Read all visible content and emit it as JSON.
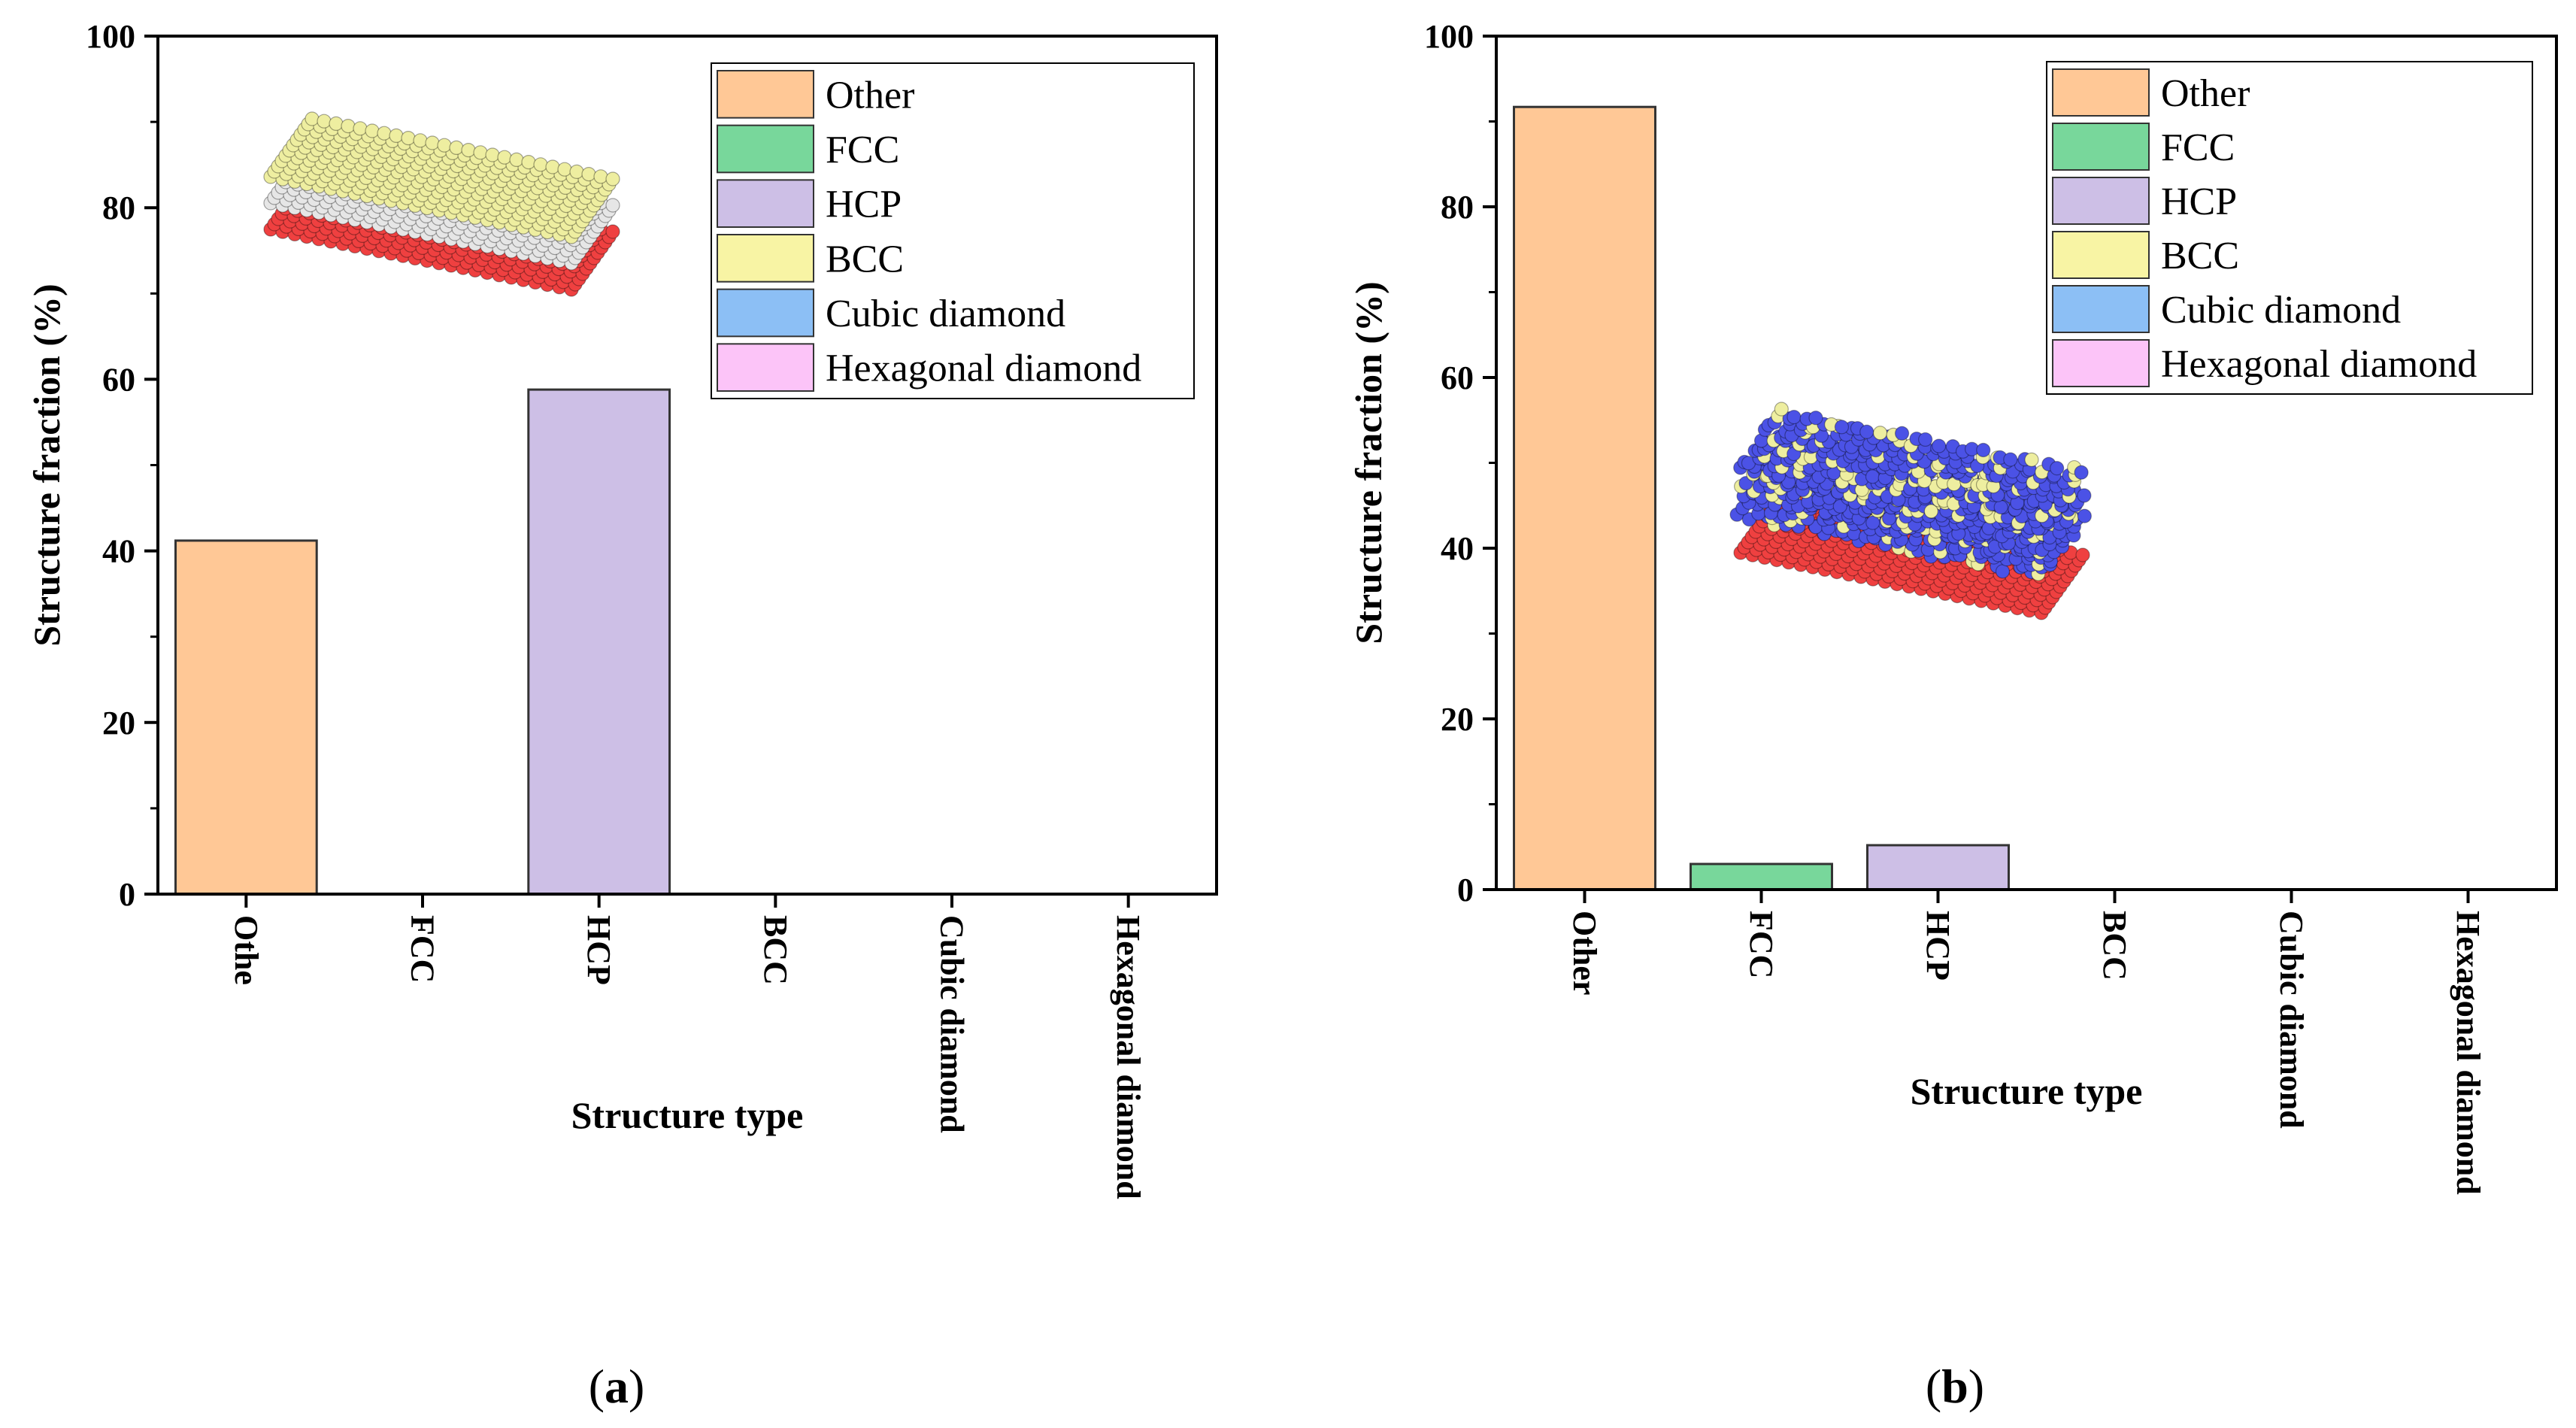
{
  "colors": {
    "Other": "#ffc896",
    "FCC": "#78d79b",
    "HCP": "#cdbfe6",
    "BCC": "#f8f4a4",
    "Cubic diamond": "#8cbff5",
    "Hexagonal diamond": "#fcc4f8",
    "atom_red": "#ef4040",
    "atom_white": "#e6e6e6",
    "atom_yellow": "#eeeea0",
    "atom_blue": "#4b52e6",
    "bar_edge": "#333333"
  },
  "chart_data": [
    {
      "type": "bar",
      "panel": "a",
      "panel_label": {
        "open": "(",
        "letter": "a",
        "close": ")"
      },
      "categories": [
        "Othe",
        "FCC",
        "HCP",
        "BCC",
        "Cubic diamond",
        "Hexagonal diamond"
      ],
      "bar_colors": [
        "Other",
        "FCC",
        "HCP",
        "BCC",
        "Cubic diamond",
        "Hexagonal diamond"
      ],
      "values": [
        41.2,
        0,
        58.8,
        0,
        0,
        0
      ],
      "xlabel": "Structure type",
      "ylabel": "Structure fraction (%)",
      "ylim": [
        0,
        100
      ],
      "yticks": [
        0,
        20,
        40,
        60,
        80,
        100
      ],
      "legend": [
        "Other",
        "FCC",
        "HCP",
        "BCC",
        "Cubic diamond",
        "Hexagonal diamond"
      ],
      "legend_position": "top-right",
      "grid": false,
      "inset": "atomic slab: red bottom layer, white middle layer, yellow-green top layer"
    },
    {
      "type": "bar",
      "panel": "b",
      "panel_label": {
        "open": "(",
        "letter": "b",
        "close": ")"
      },
      "categories": [
        "Other",
        "FCC",
        "HCP",
        "BCC",
        "Cubic diamond",
        "Hexagonal diamond"
      ],
      "bar_colors": [
        "Other",
        "FCC",
        "HCP",
        "BCC",
        "Cubic diamond",
        "Hexagonal diamond"
      ],
      "values": [
        91.7,
        3.0,
        5.2,
        0,
        0,
        0
      ],
      "xlabel": "Structure type",
      "ylabel": "Structure fraction (%)",
      "ylim": [
        0,
        100
      ],
      "yticks": [
        0,
        20,
        40,
        60,
        80,
        100
      ],
      "legend": [
        "Other",
        "FCC",
        "HCP",
        "BCC",
        "Cubic diamond",
        "Hexagonal diamond"
      ],
      "legend_position": "top-right",
      "grid": false,
      "inset": "atomic slab: red bottom layer, mixed blue and pale yellow disordered top"
    }
  ]
}
